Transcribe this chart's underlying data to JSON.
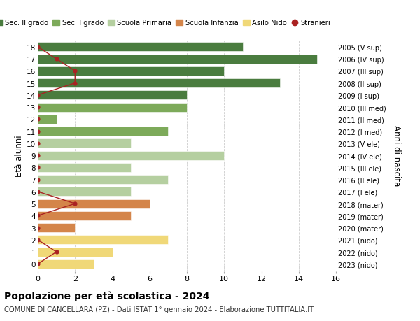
{
  "ages": [
    18,
    17,
    16,
    15,
    14,
    13,
    12,
    11,
    10,
    9,
    8,
    7,
    6,
    5,
    4,
    3,
    2,
    1,
    0
  ],
  "right_labels": [
    "2005 (V sup)",
    "2006 (IV sup)",
    "2007 (III sup)",
    "2008 (II sup)",
    "2009 (I sup)",
    "2010 (III med)",
    "2011 (II med)",
    "2012 (I med)",
    "2013 (V ele)",
    "2014 (IV ele)",
    "2015 (III ele)",
    "2016 (II ele)",
    "2017 (I ele)",
    "2018 (mater)",
    "2019 (mater)",
    "2020 (mater)",
    "2021 (nido)",
    "2022 (nido)",
    "2023 (nido)"
  ],
  "bar_values": [
    11,
    15,
    10,
    13,
    8,
    8,
    1,
    7,
    5,
    10,
    5,
    7,
    5,
    6,
    5,
    2,
    7,
    4,
    3
  ],
  "bar_colors": [
    "#4a7c3f",
    "#4a7c3f",
    "#4a7c3f",
    "#4a7c3f",
    "#4a7c3f",
    "#7daa5a",
    "#7daa5a",
    "#7daa5a",
    "#b5cfa0",
    "#b5cfa0",
    "#b5cfa0",
    "#b5cfa0",
    "#b5cfa0",
    "#d4854a",
    "#d4854a",
    "#d4854a",
    "#f0d878",
    "#f0d878",
    "#f0d878"
  ],
  "stranieri_x": [
    0,
    1,
    2,
    2,
    0,
    0,
    0,
    0,
    0,
    0,
    0,
    0,
    0,
    2,
    0,
    0,
    0,
    1,
    0
  ],
  "title_bold": "Popolazione per età scolastica - 2024",
  "subtitle": "COMUNE DI CANCELLARA (PZ) - Dati ISTAT 1° gennaio 2024 - Elaborazione TUTTITALIA.IT",
  "xlim": [
    0,
    16
  ],
  "xticks": [
    0,
    2,
    4,
    6,
    8,
    10,
    12,
    14,
    16
  ],
  "legend_labels": [
    "Sec. II grado",
    "Sec. I grado",
    "Scuola Primaria",
    "Scuola Infanzia",
    "Asilo Nido",
    "Stranieri"
  ],
  "legend_colors": [
    "#4a7c3f",
    "#7daa5a",
    "#b5cfa0",
    "#d4854a",
    "#f0d878",
    "#aa2222"
  ],
  "stranieri_color": "#aa2222",
  "grid_color": "#cccccc",
  "bg_color": "#ffffff",
  "bar_height": 0.75
}
